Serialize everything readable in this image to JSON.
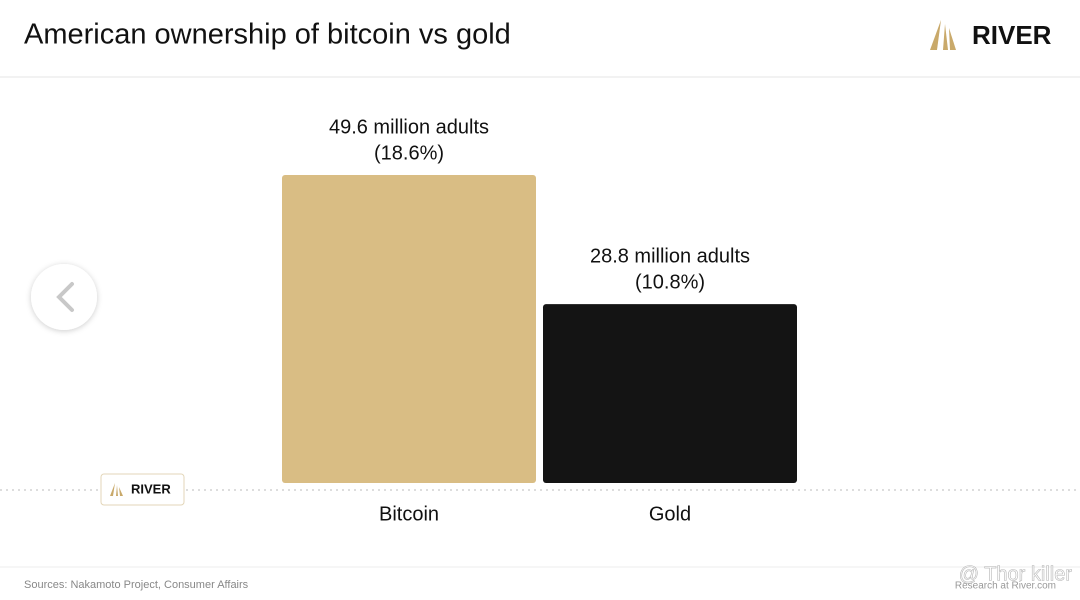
{
  "header": {
    "brand": "RIVER"
  },
  "chart_data": {
    "type": "bar",
    "title": "American ownership of bitcoin vs gold",
    "categories": [
      "Bitcoin",
      "Gold"
    ],
    "values": [
      49.6,
      28.8
    ],
    "value_labels": [
      "49.6 million adults",
      "28.8 million adults"
    ],
    "shares": [
      18.6,
      10.8
    ],
    "share_labels": [
      "(18.6%)",
      "(10.8%)"
    ],
    "colors": [
      "#d9bd84",
      "#141414"
    ],
    "baseline_badge": "RIVER"
  },
  "footer": {
    "sources": "Sources: Nakamoto Project, Consumer Affairs",
    "credit": "Research at River.com",
    "watermark": "@ Thor killer"
  }
}
